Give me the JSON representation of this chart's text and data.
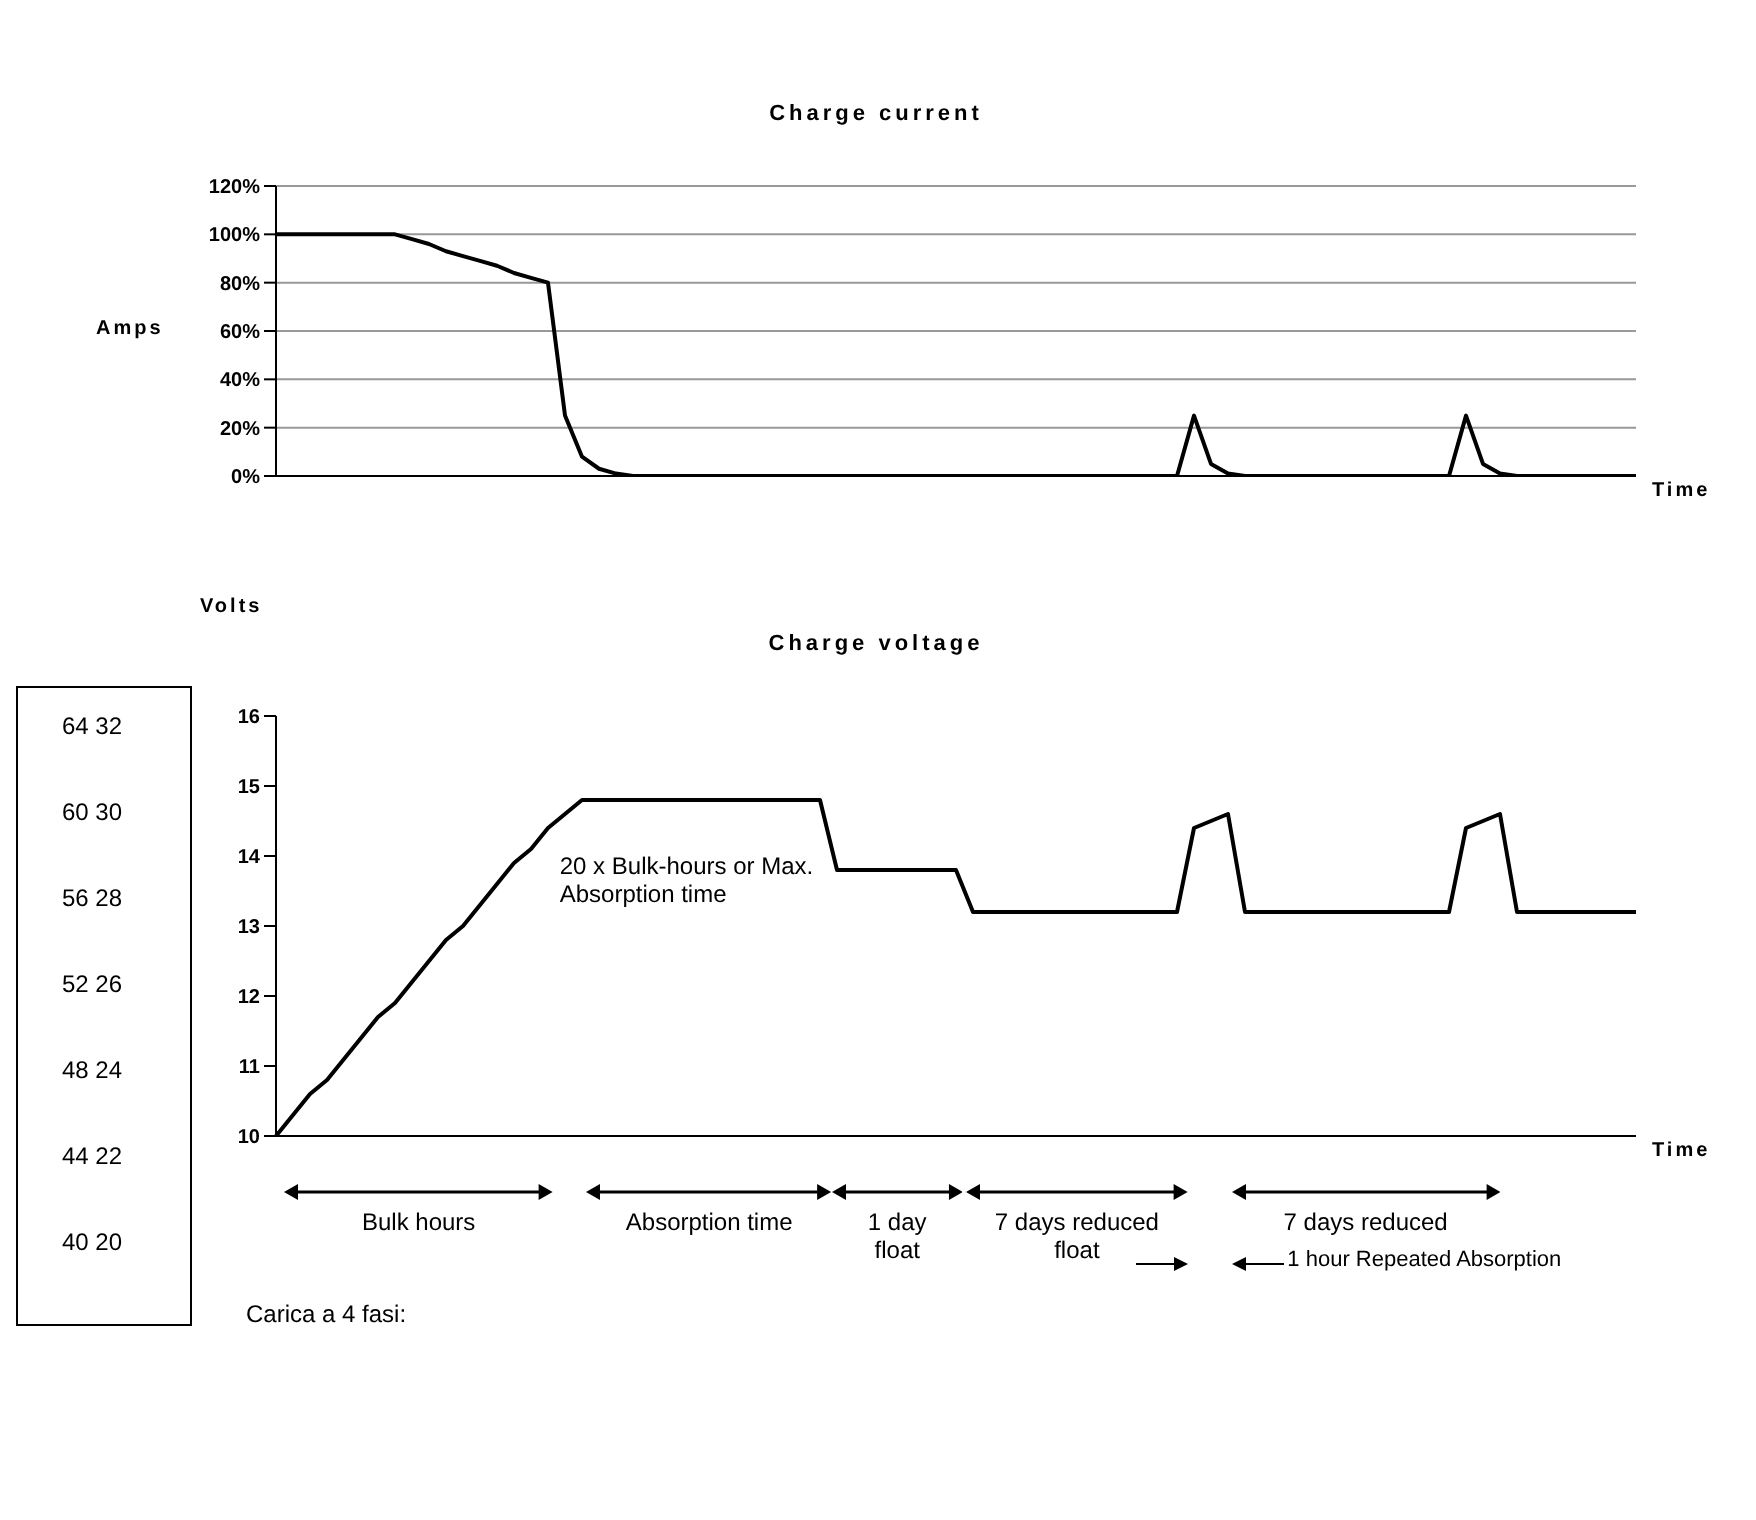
{
  "chart_data": [
    {
      "type": "line",
      "title": "Charge current",
      "ylabel": "Amps",
      "xlabel": "Time",
      "categories": [
        null,
        null,
        null,
        null,
        null,
        null,
        null,
        null,
        null,
        null,
        null,
        null,
        null,
        null,
        null,
        null,
        null,
        null,
        null,
        null,
        null,
        null,
        null,
        null,
        null,
        null,
        null,
        null,
        null,
        null,
        null,
        null,
        null,
        null,
        null,
        null,
        null,
        null,
        null,
        null,
        null,
        null,
        null,
        null,
        null,
        null,
        null,
        null,
        null,
        null,
        null,
        null,
        null,
        null,
        null,
        null,
        null,
        null,
        null,
        null,
        null,
        null,
        null,
        null,
        null,
        null,
        null,
        null,
        null,
        null,
        null,
        null,
        null,
        null,
        null,
        null,
        null,
        null,
        null,
        null,
        null
      ],
      "ylim": [
        0,
        120
      ],
      "yticks": [
        {
          "value": 0,
          "label": "0%"
        },
        {
          "value": 20,
          "label": "20%"
        },
        {
          "value": 40,
          "label": "40%"
        },
        {
          "value": 60,
          "label": "60%"
        },
        {
          "value": 80,
          "label": "80%"
        },
        {
          "value": 100,
          "label": "100%"
        },
        {
          "value": 120,
          "label": "120%"
        }
      ],
      "tick_labels": "y",
      "grid": "y",
      "marker": "none",
      "line_style": "solid",
      "series": [
        {
          "color": "#000000",
          "values": [
            100,
            100,
            100,
            100,
            100,
            100,
            100,
            100,
            98,
            96,
            93,
            91,
            89,
            87,
            84,
            82,
            80,
            25,
            8,
            3,
            1,
            0,
            0,
            0,
            0,
            0,
            0,
            0,
            0,
            0,
            0,
            0,
            0,
            0,
            0,
            0,
            0,
            0,
            0,
            0,
            0,
            0,
            0,
            0,
            0,
            0,
            0,
            0,
            0,
            0,
            0,
            0,
            0,
            0,
            25,
            5,
            1,
            0,
            0,
            0,
            0,
            0,
            0,
            0,
            0,
            0,
            0,
            0,
            0,
            0,
            25,
            5,
            1,
            0,
            0,
            0,
            0,
            0,
            0,
            0,
            0
          ]
        }
      ]
    },
    {
      "type": "line",
      "title": "Charge voltage",
      "ylabel": "Volts",
      "xlabel": "Time",
      "categories": [
        null,
        null,
        null,
        null,
        null,
        null,
        null,
        null,
        null,
        null,
        null,
        null,
        null,
        null,
        null,
        null,
        null,
        null,
        null,
        null,
        null,
        null,
        null,
        null,
        null,
        null,
        null,
        null,
        null,
        null,
        null,
        null,
        null,
        null,
        null,
        null,
        null,
        null,
        null,
        null,
        null,
        null,
        null,
        null,
        null,
        null,
        null,
        null,
        null,
        null,
        null,
        null,
        null,
        null,
        null,
        null,
        null,
        null,
        null,
        null,
        null,
        null,
        null,
        null,
        null,
        null,
        null,
        null,
        null,
        null,
        null,
        null,
        null,
        null,
        null,
        null,
        null,
        null,
        null,
        null,
        null
      ],
      "ylim": [
        10,
        16
      ],
      "yticks": [
        10,
        11,
        12,
        13,
        14,
        15,
        16
      ],
      "tick_labels": "y",
      "marker": "none",
      "line_style": "solid",
      "series": [
        {
          "color": "#000000",
          "values": [
            10,
            10.3,
            10.6,
            10.8,
            11.1,
            11.4,
            11.7,
            11.9,
            12.2,
            12.5,
            12.8,
            13,
            13.3,
            13.6,
            13.9,
            14.1,
            14.4,
            14.6,
            14.8,
            14.8,
            14.8,
            14.8,
            14.8,
            14.8,
            14.8,
            14.8,
            14.8,
            14.8,
            14.8,
            14.8,
            14.8,
            14.8,
            14.8,
            13.8,
            13.8,
            13.8,
            13.8,
            13.8,
            13.8,
            13.8,
            13.8,
            13.2,
            13.2,
            13.2,
            13.2,
            13.2,
            13.2,
            13.2,
            13.2,
            13.2,
            13.2,
            13.2,
            13.2,
            13.2,
            14.4,
            14.5,
            14.6,
            13.2,
            13.2,
            13.2,
            13.2,
            13.2,
            13.2,
            13.2,
            13.2,
            13.2,
            13.2,
            13.2,
            13.2,
            13.2,
            14.4,
            14.5,
            14.6,
            13.2,
            13.2,
            13.2,
            13.2,
            13.2,
            13.2,
            13.2,
            13.2
          ]
        }
      ],
      "annotations": [
        "20 x Bulk-hours or Max. Absorption time",
        "Bulk hours",
        "Absorption time",
        "1 day float",
        "7 days reduced float",
        "7 days reduced",
        "1 hour Repeated Absorption",
        "Carica a 4 fasi:"
      ]
    },
    {
      "type": "other",
      "annotations": [
        "64 32",
        "60 30",
        "56 28",
        "52 26",
        "48 24",
        "44 22",
        "40 20"
      ]
    }
  ]
}
